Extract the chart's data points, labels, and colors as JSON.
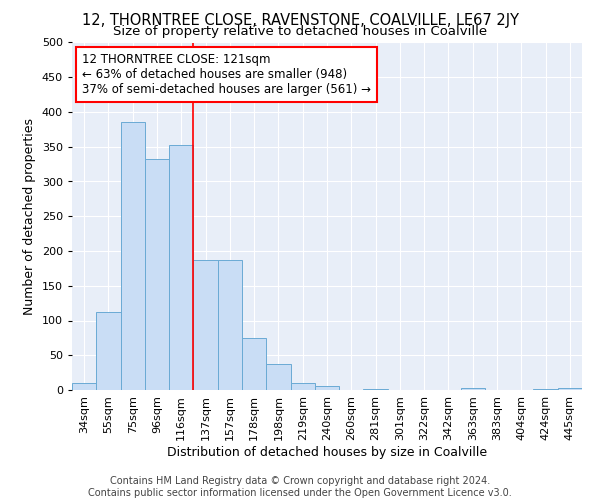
{
  "title": "12, THORNTREE CLOSE, RAVENSTONE, COALVILLE, LE67 2JY",
  "subtitle": "Size of property relative to detached houses in Coalville",
  "xlabel": "Distribution of detached houses by size in Coalville",
  "ylabel": "Number of detached properties",
  "categories": [
    "34sqm",
    "55sqm",
    "75sqm",
    "96sqm",
    "116sqm",
    "137sqm",
    "157sqm",
    "178sqm",
    "198sqm",
    "219sqm",
    "240sqm",
    "260sqm",
    "281sqm",
    "301sqm",
    "322sqm",
    "342sqm",
    "363sqm",
    "383sqm",
    "404sqm",
    "424sqm",
    "445sqm"
  ],
  "values": [
    10,
    112,
    385,
    333,
    353,
    187,
    187,
    75,
    37,
    10,
    6,
    0,
    1,
    0,
    0,
    0,
    3,
    0,
    0,
    2,
    3
  ],
  "bar_color": "#c9ddf5",
  "bar_edge_color": "#6aaad4",
  "vline_x": 4.5,
  "vline_color": "red",
  "annotation_text": "12 THORNTREE CLOSE: 121sqm\n← 63% of detached houses are smaller (948)\n37% of semi-detached houses are larger (561) →",
  "annotation_box_color": "white",
  "annotation_box_edge": "red",
  "ylim": [
    0,
    500
  ],
  "yticks": [
    0,
    50,
    100,
    150,
    200,
    250,
    300,
    350,
    400,
    450,
    500
  ],
  "footer": "Contains HM Land Registry data © Crown copyright and database right 2024.\nContains public sector information licensed under the Open Government Licence v3.0.",
  "bg_color": "#e8eef8",
  "title_fontsize": 10.5,
  "subtitle_fontsize": 9.5,
  "axis_label_fontsize": 9,
  "tick_fontsize": 8,
  "footer_fontsize": 7,
  "annotation_fontsize": 8.5
}
